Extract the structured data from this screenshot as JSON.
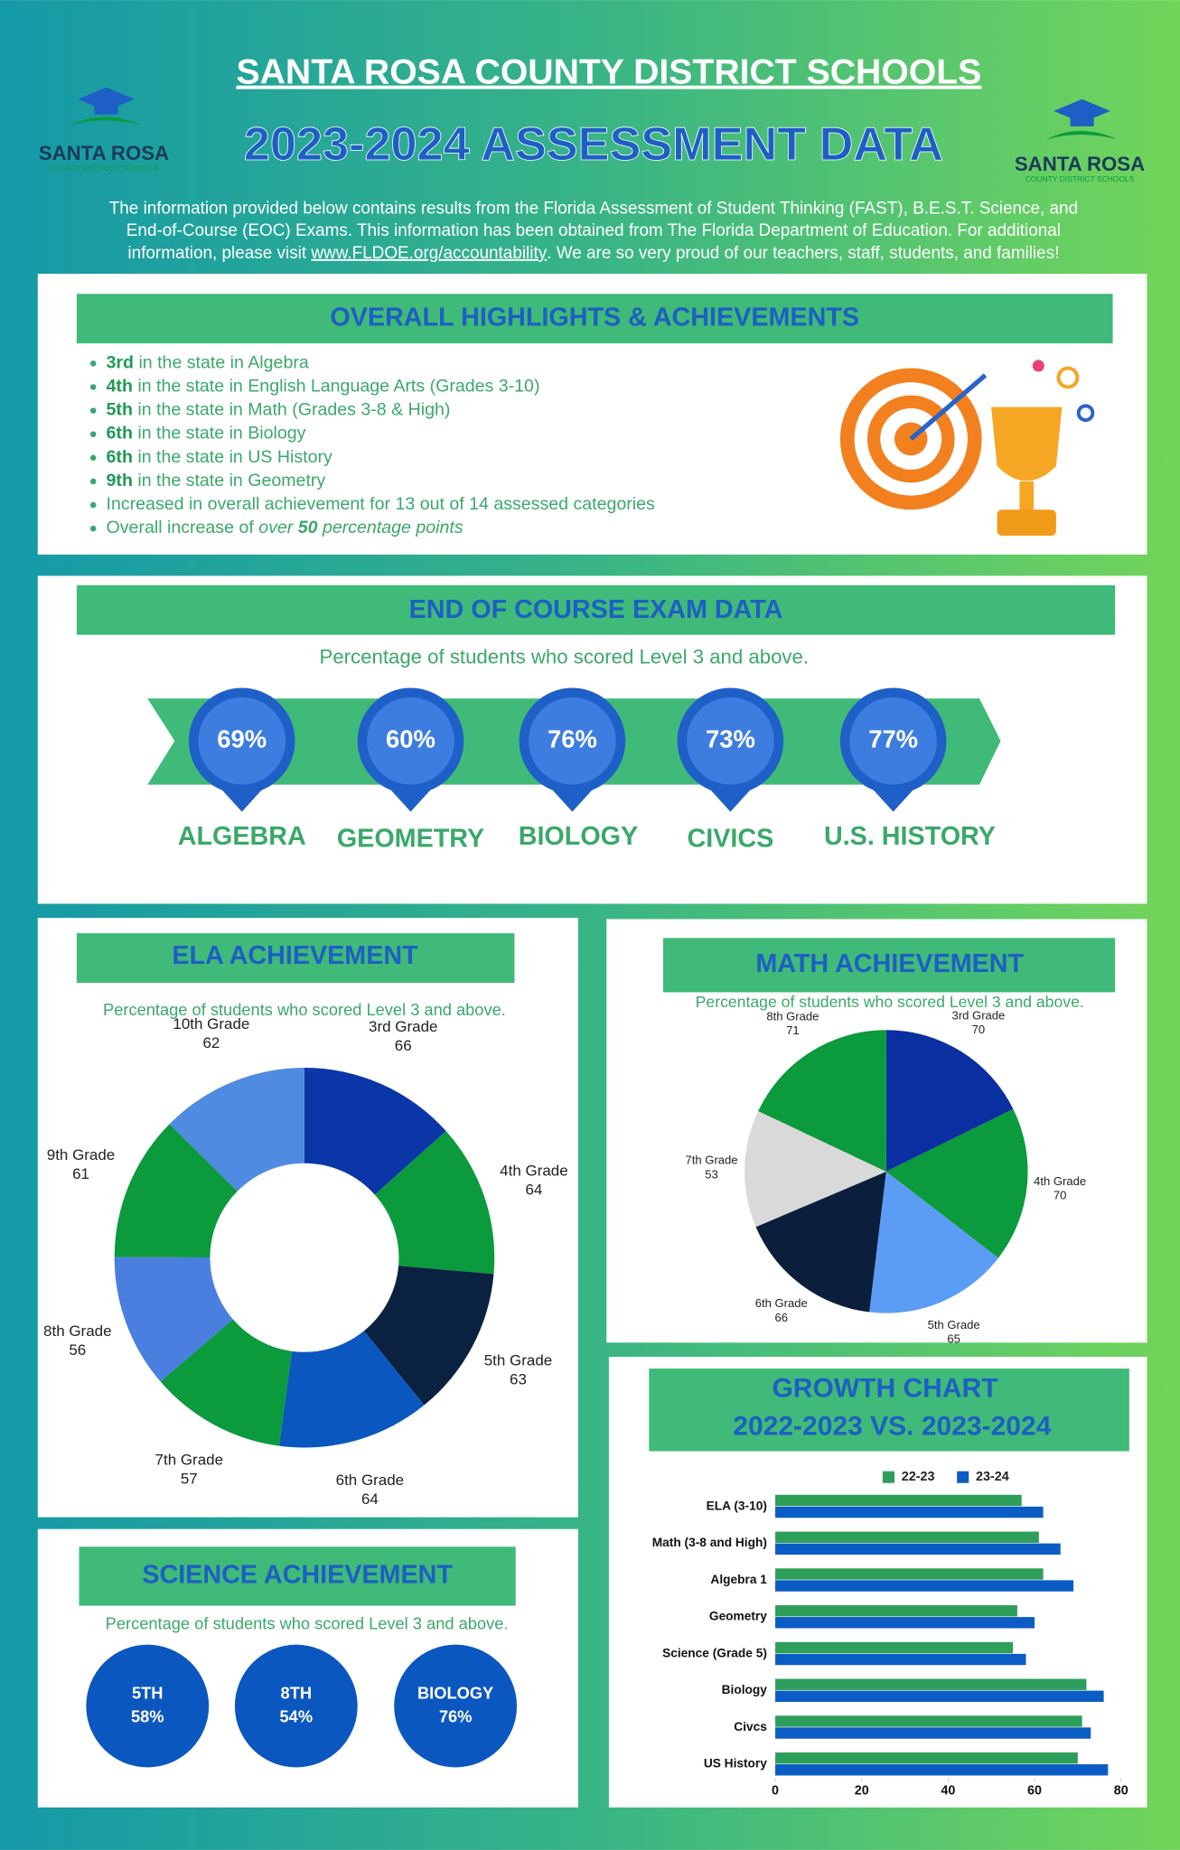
{
  "header": {
    "title": "SANTA ROSA COUNTY DISTRICT SCHOOLS",
    "subtitle": "2023-2024 ASSESSMENT DATA",
    "logo_name": "SANTA ROSA",
    "logo_tagline": "COUNTY DISTRICT SCHOOLS",
    "intro": {
      "lines": [
        "The information provided below contains results from the Florida Assessment of Student Thinking (FAST), B.E.S.T. Science, and",
        "End-of-Course (EOC) Exams. This information has been obtained from The Florida Department of Education. For additional"
      ],
      "before_link": "information, please visit ",
      "link": "www.FLDOE.org/accountability",
      "after_link": ". We are so very proud of our teachers, staff, students, and families!"
    }
  },
  "highlights": {
    "title": "OVERALL HIGHLIGHTS & ACHIEVEMENTS",
    "items": [
      {
        "rank": "3rd",
        "text": " in the state in Algebra"
      },
      {
        "rank": "4th",
        "text": " in the state in English Language Arts (Grades 3-10)"
      },
      {
        "rank": "5th",
        "text": " in the state in Math (Grades 3-8 & High)"
      },
      {
        "rank": "6th",
        "text": " in the state in Biology"
      },
      {
        "rank": "6th",
        "text": " in the state in US History"
      },
      {
        "rank": "9th",
        "text": " in the state in Geometry"
      },
      {
        "text": "Increased in overall achievement for 13 out of 14 assessed categories"
      },
      {
        "text": "Overall increase of ",
        "em": "over ",
        "em_bold": "50",
        "em_after": " percentage points"
      }
    ]
  },
  "eoc": {
    "title": "END OF COURSE EXAM DATA",
    "subtitle": "Percentage of students who scored Level 3 and above.",
    "items": [
      {
        "value": "69%",
        "label": "ALGEBRA"
      },
      {
        "value": "60%",
        "label": "GEOMETRY"
      },
      {
        "value": "76%",
        "label": "BIOLOGY"
      },
      {
        "value": "73%",
        "label": "CIVICS"
      },
      {
        "value": "77%",
        "label": "U.S. HISTORY"
      }
    ]
  },
  "science": {
    "title": "SCIENCE ACHIEVEMENT",
    "subtitle": "Percentage of students who scored Level 3 and above.",
    "items": [
      {
        "label": "5TH",
        "value": "58%"
      },
      {
        "label": "8TH",
        "value": "54%"
      },
      {
        "label": "BIOLOGY",
        "value": "76%"
      }
    ]
  },
  "chart_data": [
    {
      "type": "donut",
      "title": "ELA ACHIEVEMENT",
      "subtitle": "Percentage of students who scored Level 3 and above.",
      "categories": [
        "3rd Grade",
        "4th Grade",
        "5th Grade",
        "6th Grade",
        "7th Grade",
        "8th Grade",
        "9th Grade",
        "10th Grade"
      ],
      "values": [
        66,
        64,
        63,
        64,
        57,
        56,
        61,
        62
      ],
      "colors": [
        "#0a36a8",
        "#0b9a3c",
        "#0b2140",
        "#0b57c0",
        "#0b9a3c",
        "#4a7fe0",
        "#0b9a3c",
        "#4f8be0"
      ]
    },
    {
      "type": "pie",
      "title": "MATH ACHIEVEMENT",
      "subtitle": "Percentage of students who scored Level 3 and above.",
      "categories": [
        "3rd Grade",
        "4th Grade",
        "5th Grade",
        "6th Grade",
        "7th Grade",
        "8th Grade"
      ],
      "values": [
        70,
        70,
        65,
        66,
        53,
        71
      ],
      "colors": [
        "#0a2fa0",
        "#0b9a3c",
        "#5b9cf5",
        "#0b1f3c",
        "#d9d9d9",
        "#0b9a3c"
      ]
    },
    {
      "type": "hbar",
      "title": "GROWTH CHART",
      "subtitle": "2022-2023 VS. 2023-2024",
      "categories": [
        "ELA (3-10)",
        "Math (3-8 and High)",
        "Algebra 1",
        "Geometry",
        "Science (Grade 5)",
        "Biology",
        "Civcs",
        "US History"
      ],
      "series": [
        {
          "name": "22-23",
          "color": "#2e9e5b",
          "values": [
            57,
            61,
            62,
            56,
            55,
            72,
            71,
            70
          ]
        },
        {
          "name": "23-24",
          "color": "#0b5cc4",
          "values": [
            62,
            66,
            69,
            60,
            58,
            76,
            73,
            77
          ]
        }
      ],
      "xlim": [
        0,
        80
      ],
      "xticks": [
        0,
        20,
        40,
        60,
        80
      ],
      "grid": false,
      "legend": "top"
    }
  ]
}
